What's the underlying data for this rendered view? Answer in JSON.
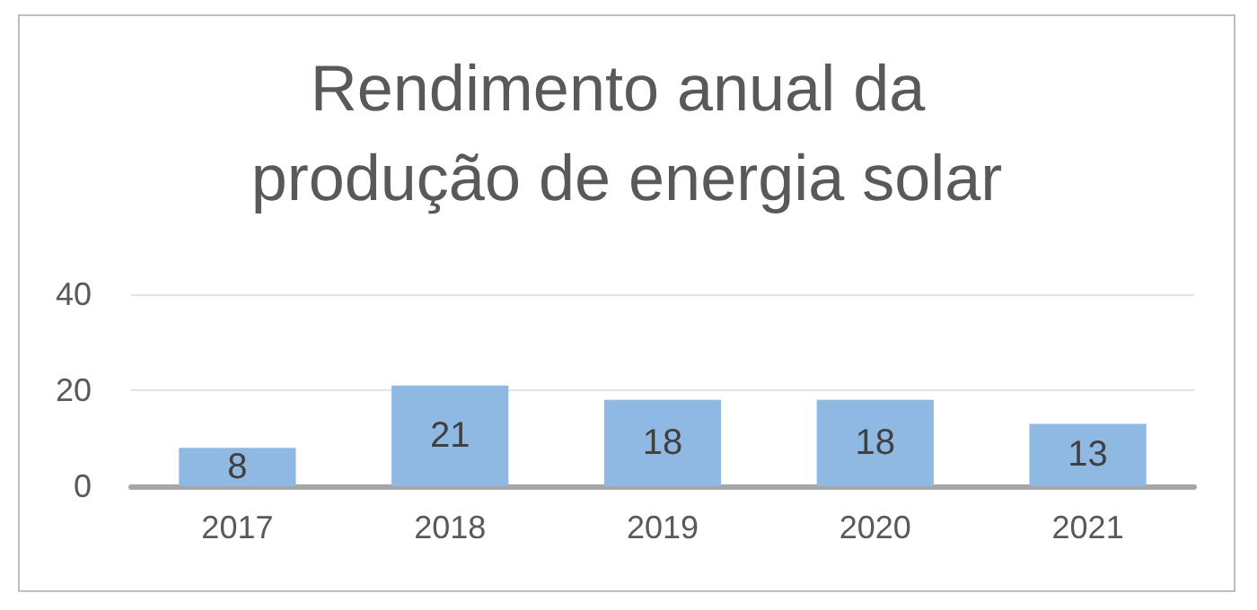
{
  "chart_data": {
    "type": "bar",
    "title": "Rendimento anual da produção de energia solar",
    "categories": [
      "2017",
      "2018",
      "2019",
      "2020",
      "2021"
    ],
    "values": [
      8,
      21,
      18,
      18,
      13
    ],
    "color": "#8fb8e3",
    "ylim": [
      0,
      40
    ],
    "yticks": [
      0,
      20,
      40
    ],
    "grid": "y",
    "data_labels": true
  }
}
